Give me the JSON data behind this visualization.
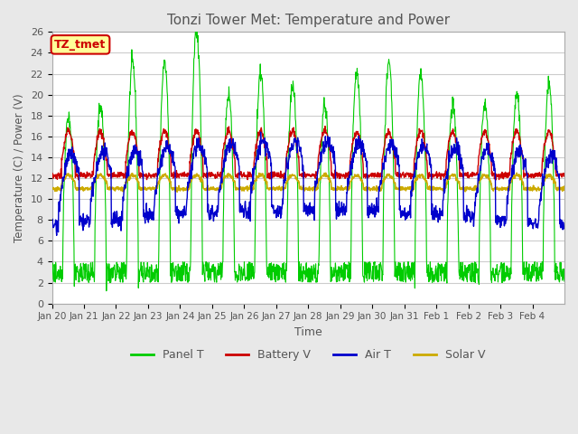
{
  "title": "Tonzi Tower Met: Temperature and Power",
  "xlabel": "Time",
  "ylabel": "Temperature (C) / Power (V)",
  "ylim": [
    0,
    26
  ],
  "yticks": [
    0,
    2,
    4,
    6,
    8,
    10,
    12,
    14,
    16,
    18,
    20,
    22,
    24,
    26
  ],
  "xtick_labels": [
    "Jan 20",
    "Jan 21",
    "Jan 22",
    "Jan 23",
    "Jan 24",
    "Jan 25",
    "Jan 26",
    "Jan 27",
    "Jan 28",
    "Jan 29",
    "Jan 30",
    "Jan 31",
    "Feb 1",
    "Feb 2",
    "Feb 3",
    "Feb 4"
  ],
  "n_days": 16,
  "legend_labels": [
    "Panel T",
    "Battery V",
    "Air T",
    "Solar V"
  ],
  "legend_colors": [
    "#00cc00",
    "#cc0000",
    "#0000cc",
    "#ccaa00"
  ],
  "timezone_label": "TZ_tmet",
  "panel_color": "#00cc00",
  "battery_color": "#cc0000",
  "air_color": "#0000cc",
  "solar_color": "#ccaa00",
  "bg_color": "#e8e8e8",
  "plot_bg": "#ffffff",
  "grid_color": "#cccccc"
}
